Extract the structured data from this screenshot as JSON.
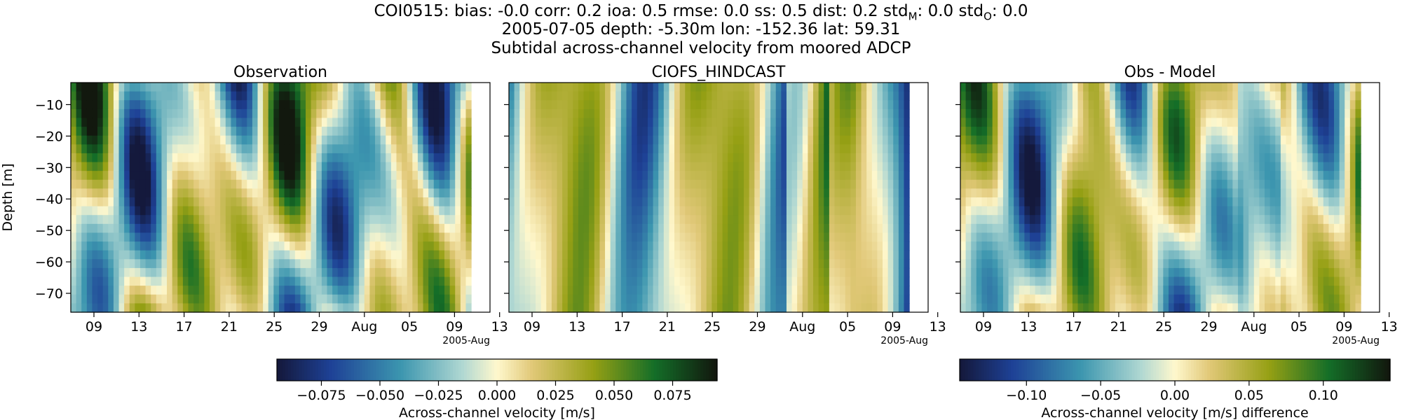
{
  "figure": {
    "title_lines": [
      "COI0515: bias: -0.0  corr: 0.2  ioa: 0.5  rmse: 0.0  ss: 0.5  dist: 0.2  std_M: 0.0  std_O: 0.0",
      "2005-07-05 depth: -5.30m lon: -152.36 lat: 59.31",
      "Subtidal across-channel velocity from moored ADCP"
    ],
    "title_parts": {
      "prefix": "COI0515: bias: -0.0  corr: 0.2  ioa: 0.5  rmse: 0.0  ss: 0.5  dist: 0.2  std",
      "std_m_sub": "M",
      "mid": ": 0.0  std",
      "std_o_sub": "O",
      "suffix": ": 0.0"
    }
  },
  "chart_data": [
    {
      "type": "heatmap",
      "title": "Observation",
      "ylabel": "Depth [m]",
      "yticks": [
        -10,
        -20,
        -30,
        -40,
        -50,
        -60,
        -70
      ],
      "ylim": [
        -76,
        -3
      ],
      "xticks": [
        "09",
        "13",
        "17",
        "21",
        "25",
        "29",
        "Aug",
        "05",
        "09",
        "13"
      ],
      "x_offset_label": "2005-Aug",
      "colormap": "diverging blue-white-green",
      "colorbar": {
        "label": "Across-channel velocity [m/s]",
        "ticks": [
          "−0.075",
          "−0.050",
          "−0.025",
          "0.000",
          "0.025",
          "0.050",
          "0.075"
        ],
        "tick_values": [
          -0.075,
          -0.05,
          -0.025,
          0.0,
          0.025,
          0.05,
          0.075
        ],
        "range": [
          -0.094,
          0.094
        ]
      }
    },
    {
      "type": "heatmap",
      "title": "CIOFS_HINDCAST",
      "yticks": [
        -10,
        -20,
        -30,
        -40,
        -50,
        -60,
        -70
      ],
      "ylim": [
        -76,
        -3
      ],
      "xticks": [
        "09",
        "13",
        "17",
        "21",
        "25",
        "29",
        "Aug",
        "05",
        "09",
        "13"
      ],
      "x_offset_label": "2005-Aug",
      "colormap": "diverging blue-white-green"
    },
    {
      "type": "heatmap",
      "title": "Obs - Model",
      "yticks": [
        -10,
        -20,
        -30,
        -40,
        -50,
        -60,
        -70
      ],
      "ylim": [
        -76,
        -3
      ],
      "xticks": [
        "09",
        "13",
        "17",
        "21",
        "25",
        "29",
        "Aug",
        "05",
        "09",
        "13"
      ],
      "x_offset_label": "2005-Aug",
      "colormap": "diverging blue-white-green",
      "colorbar": {
        "label": "Across-channel velocity [m/s] difference",
        "ticks": [
          "−0.10",
          "−0.05",
          "0.00",
          "0.05",
          "0.10"
        ],
        "tick_values": [
          -0.1,
          -0.05,
          0.0,
          0.05,
          0.1
        ],
        "range": [
          -0.145,
          0.145
        ]
      }
    }
  ]
}
